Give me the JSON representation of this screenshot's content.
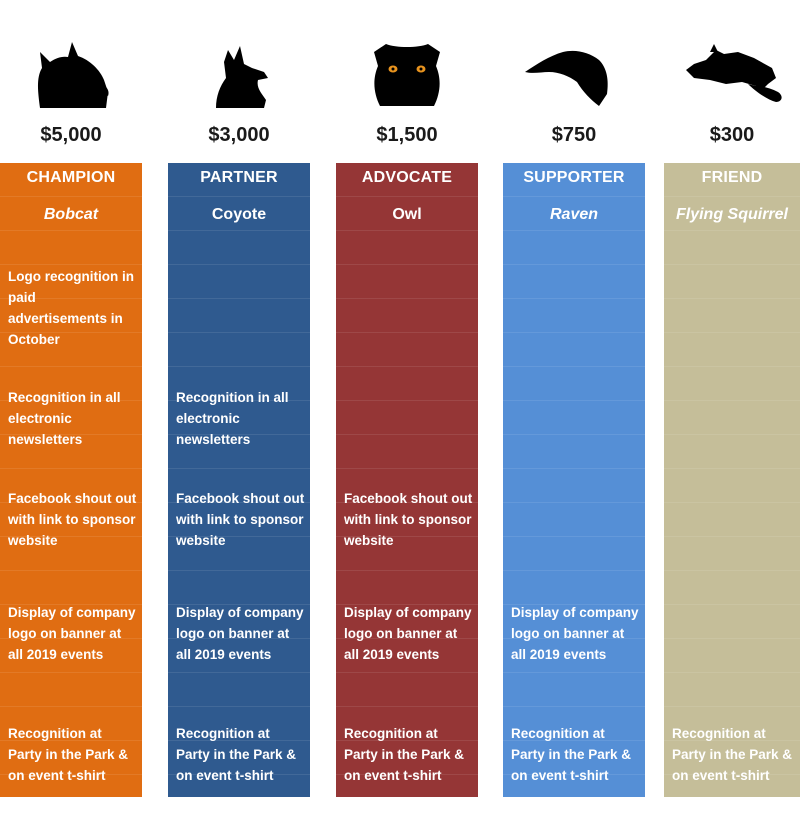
{
  "tiers": [
    {
      "price": "$5,000",
      "name": "CHAMPION",
      "animal": "Bobcat",
      "animal_italic": true,
      "color": "#e06d12",
      "icon": "bobcat-silhouette-icon",
      "benefits": [
        "Logo recognition in paid advertisements in October",
        "Recognition in all electronic newsletters",
        "Facebook shout out with link to sponsor website",
        "Display of company logo on banner at all 2019 events",
        "Recognition at Party in the Park & on event t-shirt"
      ]
    },
    {
      "price": "$3,000",
      "name": "PARTNER",
      "animal": "Coyote",
      "animal_italic": false,
      "color": "#2f5a8f",
      "icon": "coyote-silhouette-icon",
      "benefits": [
        "",
        "Recognition in all electronic newsletters",
        "Facebook shout out with link to sponsor website",
        "Display of company logo on banner at all 2019 events",
        "Recognition at Party in the Park & on event t-shirt"
      ]
    },
    {
      "price": "$1,500",
      "name": "ADVOCATE",
      "animal": "Owl",
      "animal_italic": false,
      "color": "#953636",
      "icon": "owl-silhouette-icon",
      "benefits": [
        "",
        "",
        "Facebook shout out with link to sponsor website",
        "Display of company logo on banner at all 2019 events",
        "Recognition at Party in the Park & on event t-shirt"
      ]
    },
    {
      "price": "$750",
      "name": "SUPPORTER",
      "animal": "Raven",
      "animal_italic": true,
      "color": "#558fd6",
      "icon": "raven-silhouette-icon",
      "benefits": [
        "",
        "",
        "",
        "Display of company logo on banner at all 2019 events",
        "Recognition at Party in the Park & on event t-shirt"
      ]
    },
    {
      "price": "$300",
      "name": "FRIEND",
      "animal": "Flying Squirrel",
      "animal_italic": true,
      "color": "#c5be99",
      "icon": "flying-squirrel-silhouette-icon",
      "benefits": [
        "",
        "",
        "",
        "",
        "Recognition at Party in the Park & on event t-shirt"
      ]
    }
  ]
}
